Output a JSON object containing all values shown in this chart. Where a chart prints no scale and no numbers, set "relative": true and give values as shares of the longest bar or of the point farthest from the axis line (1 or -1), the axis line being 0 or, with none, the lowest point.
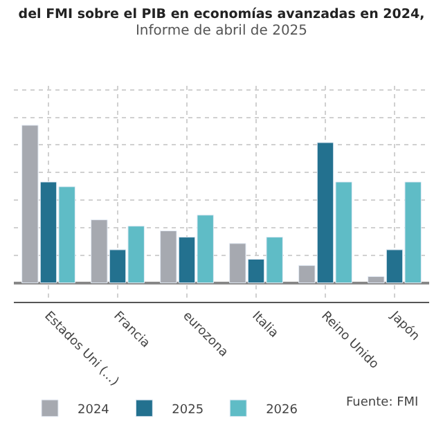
{
  "chart_data": {
    "type": "bar",
    "title": "del FMI sobre el PIB en economías avanzadas en 2024,",
    "subtitle": "Informe de abril de 2025",
    "categories": [
      "Estados Uni (...)",
      "Francia",
      "eurozona",
      "Italia",
      "Reino Unido",
      "Japón"
    ],
    "relative": true,
    "series": [
      {
        "name": "2024",
        "color": "#a6a9b0",
        "values": [
          1,
          0.4,
          0.33,
          0.25,
          0.11,
          0.04
        ]
      },
      {
        "name": "2025",
        "color": "#23718f",
        "values": [
          0.64,
          0.21,
          0.29,
          0.15,
          0.89,
          0.21
        ]
      },
      {
        "name": "2026",
        "color": "#5fbcc6",
        "values": [
          0.61,
          0.36,
          0.43,
          0.29,
          0.64,
          0.64
        ]
      }
    ],
    "annotations": [
      "Fuente: FMI"
    ],
    "grid": true,
    "legend": "bottom"
  }
}
